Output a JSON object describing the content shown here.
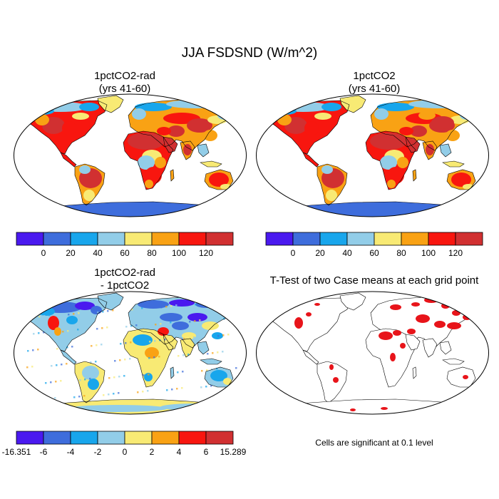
{
  "figure": {
    "title": "JJA FSDSND (W/m^2)"
  },
  "panels": [
    {
      "id": "p1",
      "title_line1": "1pctCO2-rad",
      "title_line2": "(yrs 41-60)"
    },
    {
      "id": "p2",
      "title_line1": "1pctCO2",
      "title_line2": "(yrs 41-60)"
    },
    {
      "id": "p3",
      "title_line1": "1pctCO2-rad",
      "title_line2": "- 1pctCO2"
    },
    {
      "id": "p4",
      "title_line1": "T-Test of two Case means at each grid point",
      "title_line2": ""
    }
  ],
  "note": "Cells are significant at 0.1 level",
  "colorbars": {
    "absolute": {
      "colors": [
        "#4a19ef",
        "#3e6ddc",
        "#18a6ec",
        "#92cde8",
        "#f8ea74",
        "#f9a214",
        "#f8160f",
        "#d13031"
      ],
      "labels": [
        "0",
        "20",
        "40",
        "60",
        "80",
        "100",
        "120"
      ]
    },
    "difference": {
      "colors": [
        "#4a19ef",
        "#3e6ddc",
        "#18a6ec",
        "#92cde8",
        "#f8ea74",
        "#f9a214",
        "#f8160f",
        "#d13031"
      ],
      "labels": [
        "-16.351",
        "-6",
        "-4",
        "-2",
        "0",
        "2",
        "4",
        "6",
        "15.289"
      ]
    }
  },
  "significance_color": "#e8141a"
}
